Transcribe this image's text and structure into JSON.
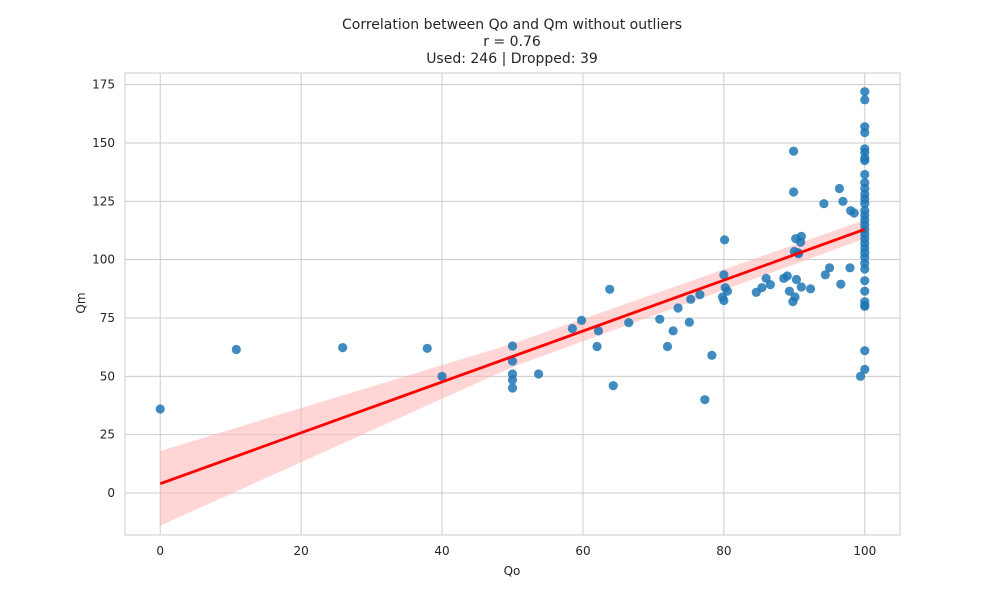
{
  "chart_data": {
    "type": "scatter",
    "title": "Correlation between Qo and Qm without outliers",
    "subtitle_lines": [
      "r = 0.76",
      "Used: 246 | Dropped: 39"
    ],
    "xlabel": "Qo",
    "ylabel": "Qm",
    "xlim": [
      -5,
      105
    ],
    "ylim": [
      -18,
      180
    ],
    "xticks": [
      0,
      20,
      40,
      60,
      80,
      100
    ],
    "yticks": [
      0,
      25,
      50,
      75,
      100,
      125,
      150,
      175
    ],
    "grid": true,
    "colors": {
      "points": "#1f77b4",
      "regression": "#ff0000",
      "band": "#ffb3b3"
    },
    "series": [
      {
        "kind": "points",
        "points": [
          [
            0,
            36
          ],
          [
            10.8,
            61.5
          ],
          [
            25.9,
            62.3
          ],
          [
            37.9,
            62
          ],
          [
            40,
            50
          ],
          [
            50,
            63
          ],
          [
            50,
            56.5
          ],
          [
            50,
            51
          ],
          [
            50,
            48.5
          ],
          [
            50,
            45
          ],
          [
            53.7,
            51
          ],
          [
            58.5,
            70.5
          ],
          [
            59.8,
            74
          ],
          [
            62,
            62.8
          ],
          [
            62.2,
            69.5
          ],
          [
            63.8,
            87.3
          ],
          [
            64.3,
            46
          ],
          [
            66.5,
            73
          ],
          [
            70.9,
            74.5
          ],
          [
            72,
            62.8
          ],
          [
            72.8,
            69.5
          ],
          [
            73.5,
            79.3
          ],
          [
            75.1,
            73.2
          ],
          [
            75.3,
            83
          ],
          [
            76.6,
            85
          ],
          [
            77.3,
            40
          ],
          [
            78.3,
            59
          ],
          [
            79.8,
            84
          ],
          [
            80,
            82.5
          ],
          [
            80,
            93.5
          ],
          [
            80.1,
            108.5
          ],
          [
            80.2,
            88
          ],
          [
            80.5,
            86.5
          ],
          [
            84.6,
            86
          ],
          [
            85.4,
            88
          ],
          [
            86,
            92
          ],
          [
            86.6,
            89.3
          ],
          [
            88.5,
            92
          ],
          [
            89,
            93
          ],
          [
            89.3,
            86.5
          ],
          [
            89.8,
            82
          ],
          [
            89.9,
            146.5
          ],
          [
            89.9,
            129
          ],
          [
            90,
            103.5
          ],
          [
            90.1,
            84
          ],
          [
            90.2,
            109
          ],
          [
            90.3,
            91.5
          ],
          [
            90.5,
            103
          ],
          [
            90.6,
            102.5
          ],
          [
            90.9,
            107.5
          ],
          [
            91,
            110
          ],
          [
            91,
            88.3
          ],
          [
            92.3,
            87.5
          ],
          [
            94.2,
            124
          ],
          [
            94.4,
            93.5
          ],
          [
            95,
            96.5
          ],
          [
            96.4,
            130.5
          ],
          [
            96.6,
            89.5
          ],
          [
            96.9,
            125
          ],
          [
            97.9,
            96.5
          ],
          [
            98,
            121
          ],
          [
            98.5,
            120
          ],
          [
            99.4,
            50
          ],
          [
            100,
            53
          ],
          [
            100,
            61
          ],
          [
            100,
            80
          ],
          [
            100,
            80.5
          ],
          [
            100,
            82
          ],
          [
            100,
            86.5
          ],
          [
            100,
            91
          ],
          [
            100,
            96
          ],
          [
            100,
            98.5
          ],
          [
            100,
            101
          ],
          [
            100,
            103
          ],
          [
            100,
            105
          ],
          [
            100,
            107
          ],
          [
            100,
            109
          ],
          [
            100,
            111
          ],
          [
            100,
            113
          ],
          [
            100,
            115
          ],
          [
            100,
            117
          ],
          [
            100,
            119
          ],
          [
            100,
            121
          ],
          [
            100,
            124
          ],
          [
            100,
            126
          ],
          [
            100,
            128
          ],
          [
            100,
            130.5
          ],
          [
            100,
            133
          ],
          [
            100,
            136.5
          ],
          [
            100,
            142.5
          ],
          [
            100,
            143.5
          ],
          [
            100,
            146
          ],
          [
            100,
            147.5
          ],
          [
            100,
            154.5
          ],
          [
            100,
            157
          ],
          [
            100,
            168.5
          ],
          [
            100,
            172
          ]
        ]
      },
      {
        "kind": "regression",
        "line": [
          [
            0,
            4
          ],
          [
            100,
            113
          ]
        ],
        "band_upper": [
          [
            0,
            18
          ],
          [
            50,
            64
          ],
          [
            100,
            117
          ]
        ],
        "band_lower": [
          [
            0,
            -14
          ],
          [
            50,
            54
          ],
          [
            100,
            109
          ]
        ]
      }
    ]
  }
}
